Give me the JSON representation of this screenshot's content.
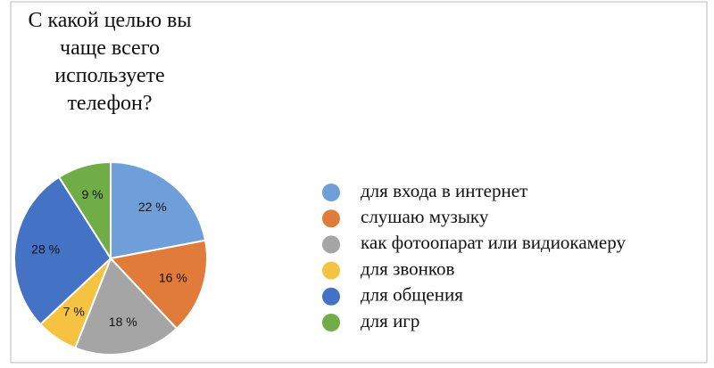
{
  "chart_data": {
    "type": "pie",
    "title": "С какой целью вы чаще всего используете телефон?",
    "categories": [
      "для входа в интернет",
      "слушаю музыку",
      "как фотоопарат или видиокамеру",
      "для звонков",
      "для общения",
      "для игр"
    ],
    "values": [
      22,
      16,
      18,
      7,
      28,
      9
    ],
    "value_labels": [
      "22 %",
      "16 %",
      "18 %",
      "7 %",
      "28 %",
      "9 %"
    ],
    "colors": [
      "#6f9fd8",
      "#e07b39",
      "#a5a5a5",
      "#f5c242",
      "#4472c4",
      "#70ad47"
    ],
    "legend": "right"
  }
}
